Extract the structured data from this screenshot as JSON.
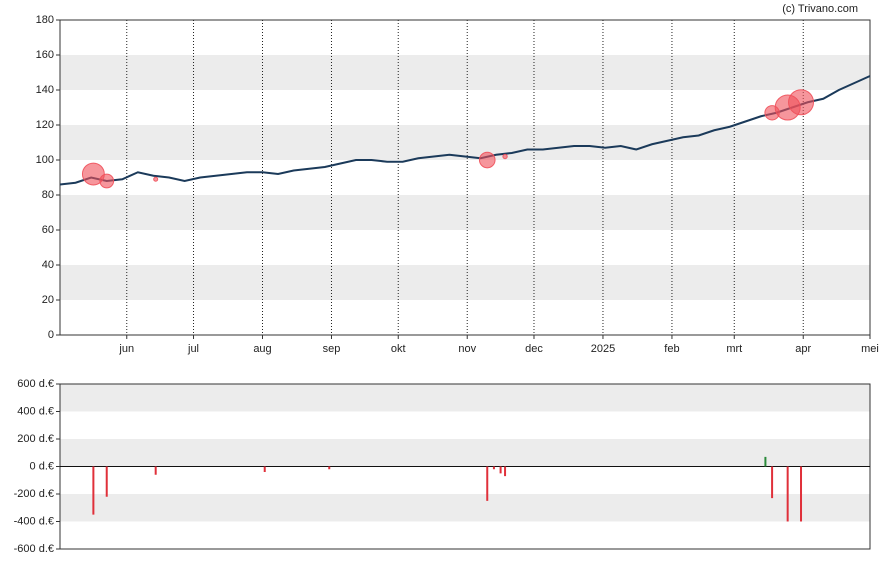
{
  "chart_data": [
    {
      "type": "line",
      "source": "(c) Trivano.com",
      "color": "#1b3a5a",
      "x": [
        0,
        7,
        14,
        21,
        28,
        35,
        42,
        49,
        56,
        63,
        70,
        77,
        84,
        91,
        98,
        105,
        112,
        119,
        126,
        133,
        140,
        147,
        154,
        161,
        168,
        175,
        182,
        189,
        196,
        203,
        210,
        217,
        224,
        231,
        238,
        245,
        252,
        259,
        266,
        273,
        280,
        287,
        294,
        301,
        308,
        315,
        322,
        329,
        336,
        343,
        350,
        357,
        364
      ],
      "values": [
        86,
        87,
        90,
        88,
        89,
        93,
        91,
        90,
        88,
        90,
        91,
        92,
        93,
        93,
        92,
        94,
        95,
        96,
        98,
        100,
        100,
        99,
        99,
        101,
        102,
        103,
        102,
        101,
        103,
        104,
        106,
        106,
        107,
        108,
        108,
        107,
        108,
        106,
        109,
        111,
        113,
        114,
        117,
        119,
        122,
        125,
        127,
        130,
        133,
        135,
        140,
        144,
        148
      ],
      "markers": {
        "color": "#f0505a",
        "x": [
          15,
          21,
          43,
          192,
          200,
          320,
          327,
          333
        ],
        "values": [
          92,
          88,
          89,
          100,
          102,
          127,
          130,
          133
        ],
        "sizes": [
          350,
          220,
          60,
          250,
          70,
          230,
          400,
          400
        ]
      },
      "xlim": [
        0,
        364
      ],
      "xticks": [
        {
          "value": 30,
          "label": "jun"
        },
        {
          "value": 60,
          "label": "jul"
        },
        {
          "value": 91,
          "label": "aug"
        },
        {
          "value": 122,
          "label": "sep"
        },
        {
          "value": 152,
          "label": "okt"
        },
        {
          "value": 183,
          "label": "nov"
        },
        {
          "value": 213,
          "label": "dec"
        },
        {
          "value": 244,
          "label": "2025"
        },
        {
          "value": 275,
          "label": "feb"
        },
        {
          "value": 303,
          "label": "mrt"
        },
        {
          "value": 334,
          "label": "apr"
        },
        {
          "value": 364,
          "label": "mei"
        }
      ],
      "ylim": [
        0,
        180
      ],
      "yticks": [
        0,
        20,
        40,
        60,
        80,
        100,
        120,
        140,
        160,
        180
      ],
      "bands": true,
      "xgrid": true
    },
    {
      "type": "bar",
      "positive_color": "#2a8a3a",
      "negative_color": "#e0303a",
      "x": [
        15,
        21,
        43,
        92,
        121,
        192,
        195,
        198,
        200,
        317,
        320,
        327,
        333
      ],
      "values": [
        -350,
        -220,
        -60,
        -40,
        -20,
        -250,
        -20,
        -50,
        -70,
        70,
        -230,
        -400,
        -400
      ],
      "xlim": [
        0,
        364
      ],
      "ylim": [
        -600,
        600
      ],
      "yticks": [
        {
          "value": 600,
          "label": "600 d.€"
        },
        {
          "value": 400,
          "label": "400 d.€"
        },
        {
          "value": 200,
          "label": "200 d.€"
        },
        {
          "value": 0,
          "label": "0 d.€"
        },
        {
          "value": -200,
          "label": "-200 d.€"
        },
        {
          "value": -400,
          "label": "-400 d.€"
        },
        {
          "value": -600,
          "label": "-600 d.€"
        }
      ],
      "bands": true
    }
  ]
}
